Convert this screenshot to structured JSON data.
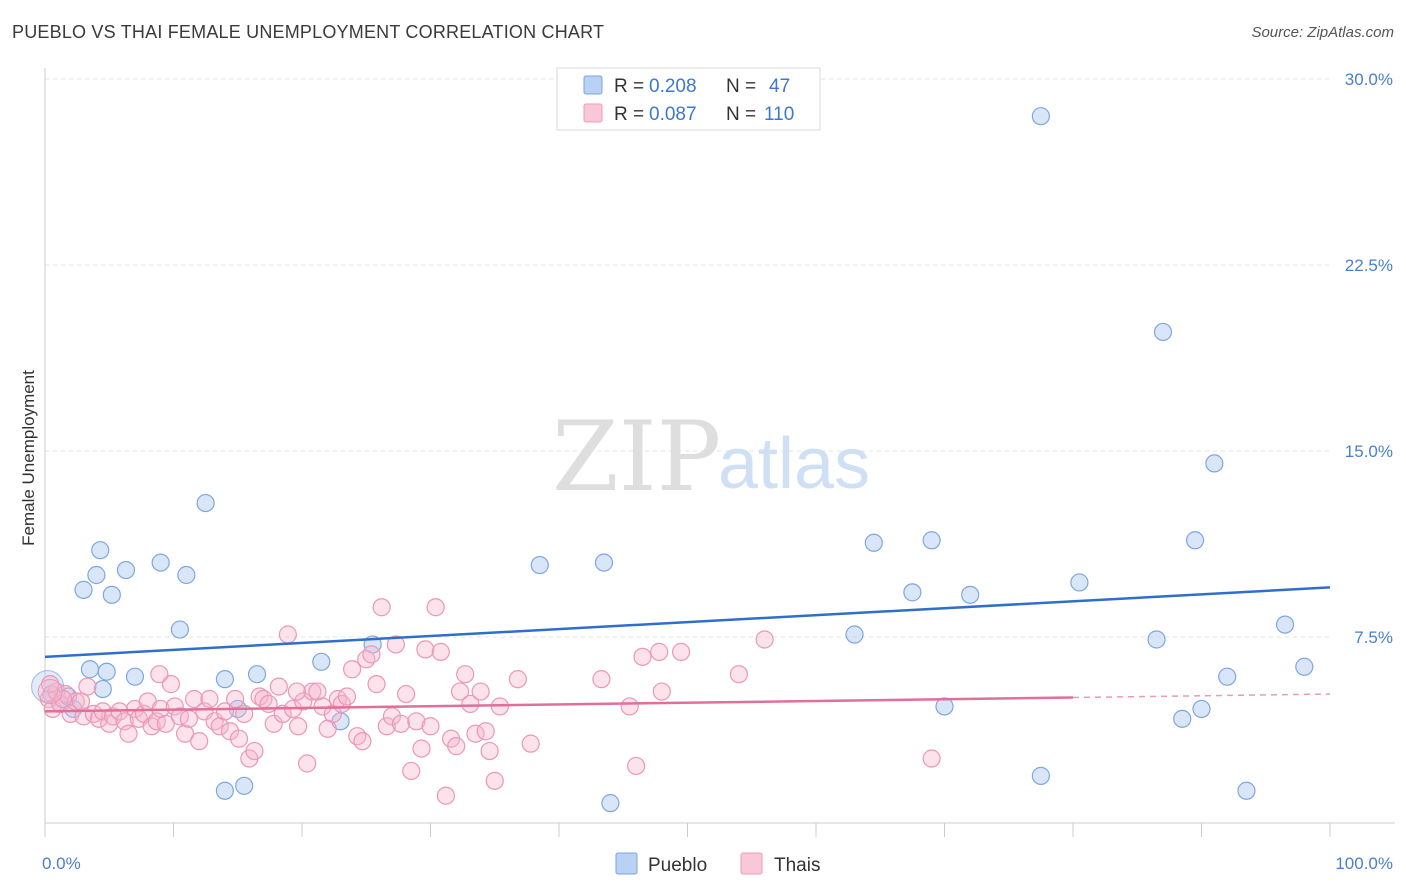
{
  "chart_data": {
    "type": "scatter",
    "title": "PUEBLO VS THAI FEMALE UNEMPLOYMENT CORRELATION CHART",
    "source": "Source: ZipAtlas.com",
    "ylabel": "Female Unemployment",
    "xlabel": "",
    "xlim": [
      0,
      100
    ],
    "ylim": [
      0,
      30
    ],
    "x_tick_labels": [
      "0.0%",
      "100.0%"
    ],
    "y_ticks": [
      7.5,
      15.0,
      22.5,
      30.0
    ],
    "y_tick_labels": [
      "7.5%",
      "15.0%",
      "22.5%",
      "30.0%"
    ],
    "watermark": {
      "zip": "ZIP",
      "atlas": "atlas"
    },
    "legend": {
      "r_label": "R =",
      "n_label": "N =",
      "entries": [
        {
          "name": "Pueblo",
          "r": "0.208",
          "n": "47"
        },
        {
          "name": "Thais",
          "r": "0.087",
          "n": "110"
        }
      ]
    },
    "series": [
      {
        "name": "Pueblo",
        "color": "#8fb6ea",
        "line_color": "#2f6fcc",
        "trend": {
          "x": [
            0,
            100
          ],
          "y": [
            6.7,
            9.5
          ],
          "dashed_from": null
        },
        "points": [
          [
            0.5,
            5.2
          ],
          [
            1.2,
            4.8
          ],
          [
            1.8,
            5.1
          ],
          [
            2.2,
            4.6
          ],
          [
            3.0,
            9.4
          ],
          [
            3.5,
            6.2
          ],
          [
            4.0,
            10.0
          ],
          [
            4.3,
            11.0
          ],
          [
            4.5,
            5.4
          ],
          [
            4.8,
            6.1
          ],
          [
            5.2,
            9.2
          ],
          [
            6.3,
            10.2
          ],
          [
            7.0,
            5.9
          ],
          [
            9.0,
            10.5
          ],
          [
            10.5,
            7.8
          ],
          [
            11.0,
            10.0
          ],
          [
            12.5,
            12.9
          ],
          [
            14.0,
            5.8
          ],
          [
            14.0,
            1.3
          ],
          [
            15.0,
            4.6
          ],
          [
            15.5,
            1.5
          ],
          [
            16.5,
            6.0
          ],
          [
            21.5,
            6.5
          ],
          [
            23.0,
            4.1
          ],
          [
            25.5,
            7.2
          ],
          [
            38.5,
            10.4
          ],
          [
            43.5,
            10.5
          ],
          [
            44.0,
            0.8
          ],
          [
            63.0,
            7.6
          ],
          [
            64.5,
            11.3
          ],
          [
            67.5,
            9.3
          ],
          [
            69.0,
            11.4
          ],
          [
            70.0,
            4.7
          ],
          [
            72.0,
            9.2
          ],
          [
            77.5,
            1.9
          ],
          [
            77.5,
            28.5
          ],
          [
            80.5,
            9.7
          ],
          [
            86.5,
            7.4
          ],
          [
            87.0,
            19.8
          ],
          [
            88.5,
            4.2
          ],
          [
            89.5,
            11.4
          ],
          [
            90.0,
            4.6
          ],
          [
            91.0,
            14.5
          ],
          [
            92.0,
            5.9
          ],
          [
            93.5,
            1.3
          ],
          [
            96.5,
            8.0
          ],
          [
            98.0,
            6.3
          ]
        ]
      },
      {
        "name": "Thais",
        "color": "#f3a7c1",
        "line_color": "#e06f9c",
        "trend": {
          "x": [
            0,
            100
          ],
          "y": [
            4.5,
            5.2
          ],
          "dashed_from": 80
        },
        "points": [
          [
            0.3,
            5.0
          ],
          [
            0.6,
            4.6
          ],
          [
            0.9,
            5.3
          ],
          [
            1.2,
            4.8
          ],
          [
            1.6,
            5.2
          ],
          [
            2.0,
            4.4
          ],
          [
            2.4,
            4.9
          ],
          [
            3.0,
            4.3
          ],
          [
            3.3,
            5.5
          ],
          [
            3.8,
            4.4
          ],
          [
            4.2,
            4.2
          ],
          [
            4.5,
            4.5
          ],
          [
            5.0,
            4.0
          ],
          [
            5.3,
            4.3
          ],
          [
            5.8,
            4.5
          ],
          [
            6.2,
            4.1
          ],
          [
            6.5,
            3.6
          ],
          [
            7.0,
            4.6
          ],
          [
            7.3,
            4.2
          ],
          [
            7.7,
            4.4
          ],
          [
            8.0,
            4.9
          ],
          [
            8.3,
            3.9
          ],
          [
            8.7,
            4.1
          ],
          [
            9.0,
            4.6
          ],
          [
            9.4,
            4.0
          ],
          [
            9.8,
            5.6
          ],
          [
            10.1,
            4.7
          ],
          [
            10.5,
            4.3
          ],
          [
            10.9,
            3.6
          ],
          [
            11.2,
            4.2
          ],
          [
            11.6,
            5.0
          ],
          [
            12.0,
            3.3
          ],
          [
            12.4,
            4.5
          ],
          [
            12.8,
            5.0
          ],
          [
            13.2,
            4.1
          ],
          [
            13.6,
            3.9
          ],
          [
            14.0,
            4.5
          ],
          [
            14.4,
            3.7
          ],
          [
            14.8,
            5.0
          ],
          [
            15.1,
            3.4
          ],
          [
            15.5,
            4.4
          ],
          [
            15.9,
            2.6
          ],
          [
            16.3,
            2.9
          ],
          [
            16.7,
            5.1
          ],
          [
            17.0,
            5.0
          ],
          [
            17.4,
            4.8
          ],
          [
            17.8,
            4.0
          ],
          [
            18.2,
            5.5
          ],
          [
            18.5,
            4.4
          ],
          [
            18.9,
            7.6
          ],
          [
            19.3,
            4.6
          ],
          [
            19.7,
            3.9
          ],
          [
            20.1,
            4.9
          ],
          [
            20.4,
            2.4
          ],
          [
            20.8,
            5.3
          ],
          [
            21.2,
            5.3
          ],
          [
            21.6,
            4.7
          ],
          [
            22.0,
            3.8
          ],
          [
            22.4,
            4.4
          ],
          [
            22.8,
            5.0
          ],
          [
            23.1,
            4.8
          ],
          [
            23.5,
            5.1
          ],
          [
            23.9,
            6.2
          ],
          [
            24.3,
            3.5
          ],
          [
            24.7,
            3.3
          ],
          [
            25.0,
            6.6
          ],
          [
            25.4,
            6.8
          ],
          [
            25.8,
            5.6
          ],
          [
            26.2,
            8.7
          ],
          [
            26.6,
            3.9
          ],
          [
            27.0,
            4.3
          ],
          [
            27.3,
            7.2
          ],
          [
            27.7,
            4.0
          ],
          [
            28.1,
            5.2
          ],
          [
            28.5,
            2.1
          ],
          [
            28.9,
            4.1
          ],
          [
            29.3,
            3.0
          ],
          [
            29.6,
            7.0
          ],
          [
            30.0,
            3.9
          ],
          [
            30.4,
            8.7
          ],
          [
            30.8,
            6.9
          ],
          [
            31.2,
            1.1
          ],
          [
            31.6,
            3.4
          ],
          [
            32.0,
            3.1
          ],
          [
            32.3,
            5.3
          ],
          [
            32.7,
            6.0
          ],
          [
            33.1,
            4.8
          ],
          [
            33.5,
            3.6
          ],
          [
            33.9,
            5.3
          ],
          [
            34.3,
            3.7
          ],
          [
            34.6,
            2.9
          ],
          [
            35.0,
            1.7
          ],
          [
            35.4,
            4.7
          ],
          [
            36.8,
            5.8
          ],
          [
            37.8,
            3.2
          ],
          [
            43.3,
            5.8
          ],
          [
            45.5,
            4.7
          ],
          [
            46.0,
            2.3
          ],
          [
            46.5,
            6.7
          ],
          [
            47.8,
            6.9
          ],
          [
            48.0,
            5.3
          ],
          [
            49.5,
            6.9
          ],
          [
            54.0,
            6.0
          ],
          [
            56.0,
            7.4
          ],
          [
            69.0,
            2.6
          ],
          [
            0.4,
            5.6
          ],
          [
            1.4,
            5.0
          ],
          [
            2.8,
            4.9
          ],
          [
            8.9,
            6.0
          ],
          [
            19.6,
            5.3
          ]
        ]
      }
    ]
  }
}
